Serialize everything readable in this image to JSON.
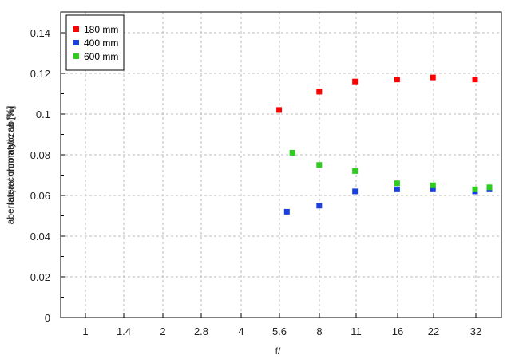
{
  "chart_data": {
    "type": "scatter",
    "title": "",
    "xlabel": "f/",
    "ylabel": "aberracja chromatyczna [%]",
    "ylabel_overlay": "lateral chromatic ab(%)",
    "x_scale": "log2-aperture (categorical f-stops)",
    "x_ticks": [
      "1",
      "1.4",
      "2",
      "2.8",
      "4",
      "5.6",
      "8",
      "11",
      "16",
      "22",
      "32"
    ],
    "y_ticks": [
      "0",
      "0.02",
      "0.04",
      "0.06",
      "0.08",
      "0.1",
      "0.12",
      "0.14"
    ],
    "ylim": [
      0,
      0.15
    ],
    "grid": true,
    "legend_position": "top-left",
    "series": [
      {
        "name": "180 mm",
        "color": "#ff0000",
        "points": [
          [
            5.6,
            0.102
          ],
          [
            8,
            0.111
          ],
          [
            11,
            0.116
          ],
          [
            16,
            0.117
          ],
          [
            22,
            0.118
          ],
          [
            32,
            0.117
          ]
        ]
      },
      {
        "name": "400 mm",
        "color": "#1a3fe0",
        "points": [
          [
            6.0,
            0.052
          ],
          [
            8,
            0.055
          ],
          [
            11,
            0.062
          ],
          [
            16,
            0.063
          ],
          [
            22,
            0.063
          ],
          [
            32,
            0.062
          ],
          [
            36,
            0.063
          ]
        ]
      },
      {
        "name": "600 mm",
        "color": "#2ecc1f",
        "points": [
          [
            6.3,
            0.081
          ],
          [
            8,
            0.075
          ],
          [
            11,
            0.072
          ],
          [
            16,
            0.066
          ],
          [
            22,
            0.065
          ],
          [
            32,
            0.063
          ],
          [
            36,
            0.064
          ]
        ]
      }
    ]
  },
  "legend": {
    "items": [
      {
        "label": "180 mm",
        "color": "#ff0000"
      },
      {
        "label": "400 mm",
        "color": "#1a3fe0"
      },
      {
        "label": "600 mm",
        "color": "#2ecc1f"
      }
    ]
  },
  "axes": {
    "xlabel": "f/",
    "ylabel": "aberracja chromatyczna [%]",
    "ylabel_overlay": "lateral chromatic ab(%)"
  }
}
